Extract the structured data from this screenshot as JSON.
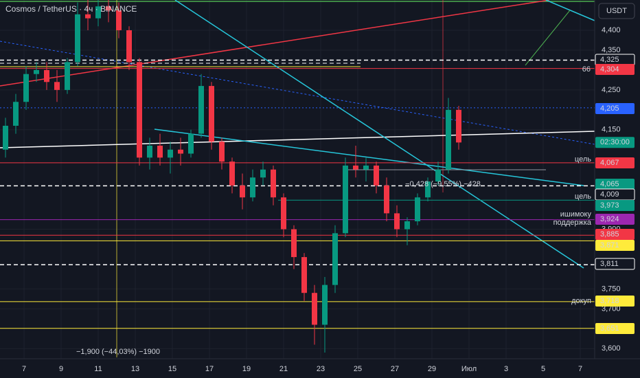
{
  "chart_data": {
    "type": "candlestick",
    "title": "Cosmos / TetherUS · 4ч · BINANCE",
    "currency": "USDT",
    "ylim": [
      3578,
      4476
    ],
    "yticks": [
      {
        "value": 3600,
        "label": "3,600"
      },
      {
        "value": 3700,
        "label": "3,700"
      },
      {
        "value": 3750,
        "label": "3,750"
      },
      {
        "value": 3900,
        "label": "3,900"
      },
      {
        "value": 4150,
        "label": "4,150"
      },
      {
        "value": 4250,
        "label": "4,250"
      },
      {
        "value": 4350,
        "label": "4,350"
      },
      {
        "value": 4400,
        "label": "4,400"
      }
    ],
    "x_labels": [
      "7",
      "9",
      "11",
      "13",
      "15",
      "17",
      "19",
      "21",
      "23",
      "25",
      "27",
      "29",
      "Июл",
      "3",
      "5",
      "7"
    ],
    "up_color": "#089981",
    "down_color": "#f23645",
    "ohlc": [
      [
        4100,
        4180,
        4080,
        4160
      ],
      [
        4160,
        4240,
        4140,
        4220
      ],
      [
        4220,
        4310,
        4200,
        4290
      ],
      [
        4290,
        4320,
        4270,
        4300
      ],
      [
        4300,
        4320,
        4250,
        4270
      ],
      [
        4270,
        4300,
        4220,
        4250
      ],
      [
        4250,
        4330,
        4240,
        4320
      ],
      [
        4320,
        4470,
        4310,
        4440
      ],
      [
        4440,
        4480,
        4400,
        4430
      ],
      [
        4430,
        4480,
        4410,
        4460
      ],
      [
        4460,
        4480,
        4420,
        4450
      ],
      [
        4450,
        4470,
        4380,
        4400
      ],
      [
        4400,
        4410,
        4300,
        4320
      ],
      [
        4320,
        4330,
        4060,
        4080
      ],
      [
        4080,
        4130,
        4050,
        4110
      ],
      [
        4110,
        4140,
        4060,
        4080
      ],
      [
        4080,
        4120,
        4040,
        4100
      ],
      [
        4100,
        4130,
        4060,
        4090
      ],
      [
        4090,
        4150,
        4080,
        4140
      ],
      [
        4140,
        4290,
        4130,
        4260
      ],
      [
        4260,
        4270,
        4100,
        4120
      ],
      [
        4120,
        4130,
        4050,
        4070
      ],
      [
        4070,
        4080,
        3990,
        4010
      ],
      [
        4010,
        4040,
        3950,
        3980
      ],
      [
        3980,
        4050,
        3970,
        4030
      ],
      [
        4030,
        4070,
        4010,
        4050
      ],
      [
        4050,
        4060,
        3960,
        3980
      ],
      [
        3980,
        3990,
        3880,
        3900
      ],
      [
        3900,
        3910,
        3800,
        3830
      ],
      [
        3830,
        3840,
        3720,
        3740
      ],
      [
        3740,
        3760,
        3610,
        3660
      ],
      [
        3660,
        3780,
        3590,
        3760
      ],
      [
        3760,
        3910,
        3740,
        3890
      ],
      [
        3890,
        4080,
        3880,
        4060
      ],
      [
        4060,
        4110,
        4030,
        4050
      ],
      [
        4050,
        4080,
        4020,
        4060
      ],
      [
        4060,
        4070,
        3990,
        4010
      ],
      [
        4010,
        4030,
        3920,
        3940
      ],
      [
        3940,
        3960,
        3880,
        3900
      ],
      [
        3900,
        3930,
        3860,
        3920
      ],
      [
        3920,
        3990,
        3910,
        3980
      ],
      [
        3980,
        4030,
        3970,
        4020
      ],
      [
        4020,
        4070,
        4010,
        4050
      ],
      [
        4050,
        4230,
        4040,
        4200
      ],
      [
        4200,
        4210,
        4100,
        4118
      ]
    ],
    "countdown": "02:30:00",
    "levels": [
      {
        "value": 4325,
        "label": "4,325",
        "color": "#ffffff",
        "style": "outline",
        "line": "dashed"
      },
      {
        "value": 4304,
        "label": "4,304",
        "color": "#f23645",
        "line": "solid",
        "notes": [
          "66"
        ]
      },
      {
        "value": 4205,
        "label": "4,205",
        "color": "#2962ff",
        "line": "dotted"
      },
      {
        "value": 4067,
        "label": "4,067",
        "color": "#f23645",
        "line": "solid",
        "notes": [
          "цель"
        ]
      },
      {
        "value": 4065,
        "label": "4,065",
        "color": "#089981",
        "line": "none"
      },
      {
        "value": 4009,
        "label": "4,009",
        "color": "#ffffff",
        "style": "outline",
        "line": "dashed"
      },
      {
        "value": 3973,
        "label": "3,973",
        "color": "#089981",
        "line": "solid",
        "notes": [
          "цель"
        ]
      },
      {
        "value": 3924,
        "label": "3,924",
        "color": "#9c27b0",
        "line": "solid",
        "notes": [
          "ишимоку",
          "поддержка"
        ]
      },
      {
        "value": 3885,
        "label": "3,885",
        "color": "#f23645",
        "line": "solid"
      },
      {
        "value": 3871,
        "label": "3,871",
        "color": "#ffeb3b",
        "line": "solid"
      },
      {
        "value": 3811,
        "label": "3,811",
        "color": "#ffffff",
        "style": "outline",
        "line": "dashed"
      },
      {
        "value": 3718,
        "label": "3,718",
        "color": "#ffeb3b",
        "line": "solid",
        "notes": [
          "докуп"
        ]
      },
      {
        "value": 3651,
        "label": "3,651",
        "color": "#ffeb3b",
        "line": "solid"
      }
    ],
    "annotations": [
      "−1,900 (−44,03%) −1900",
      "−0,428 (−9,55%) −428"
    ]
  }
}
